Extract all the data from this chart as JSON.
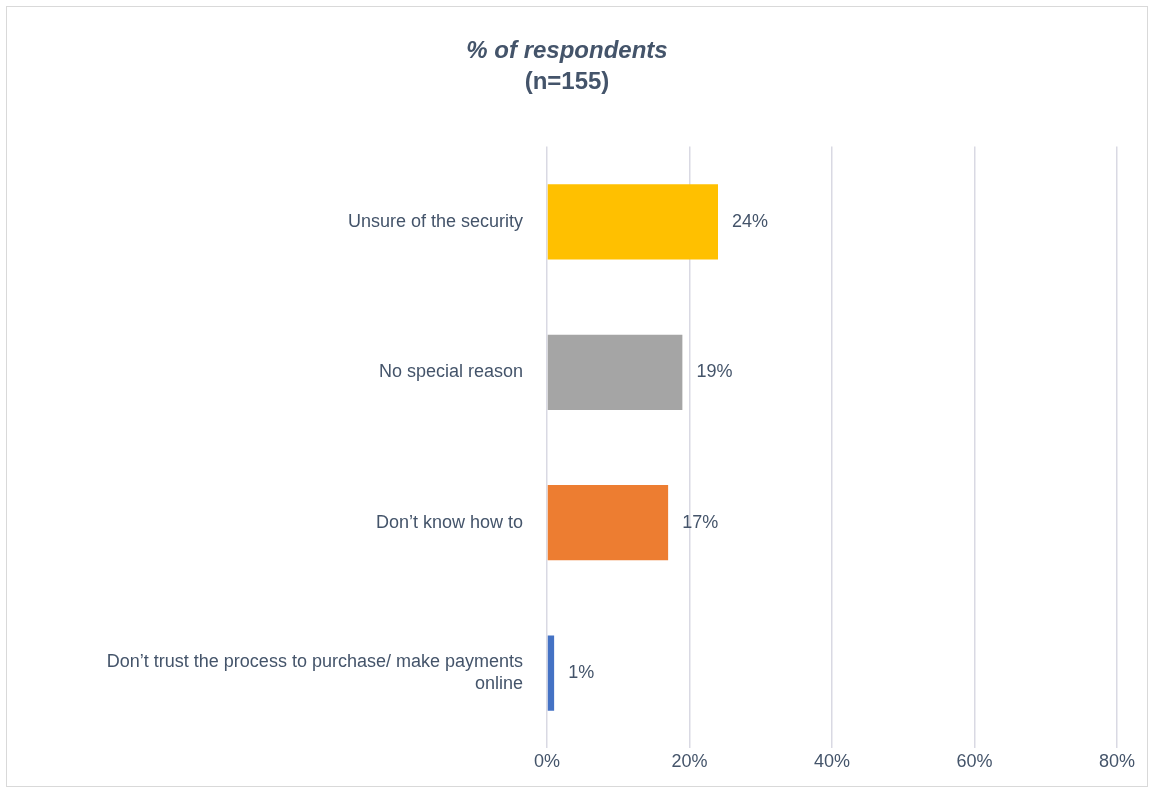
{
  "chart_data": {
    "type": "bar",
    "orientation": "horizontal",
    "title": "% of respondents",
    "subtitle": "(n=155)",
    "categories": [
      "Unsure of the security",
      "No special reason",
      "Don’t know how to",
      "Don’t trust the process to purchase/ make payments online"
    ],
    "values": [
      24,
      19,
      17,
      1
    ],
    "colors": [
      "#ffc000",
      "#a5a5a5",
      "#ed7d31",
      "#4472c4"
    ],
    "value_labels": [
      "24%",
      "19%",
      "17%",
      "1%"
    ],
    "xlim": [
      0,
      80
    ],
    "xticks": [
      {
        "value": 0,
        "label": "0%"
      },
      {
        "value": 20,
        "label": "20%"
      },
      {
        "value": 40,
        "label": "40%"
      },
      {
        "value": 60,
        "label": "60%"
      },
      {
        "value": 80,
        "label": "80%"
      }
    ],
    "grid": "x",
    "legend": false
  }
}
